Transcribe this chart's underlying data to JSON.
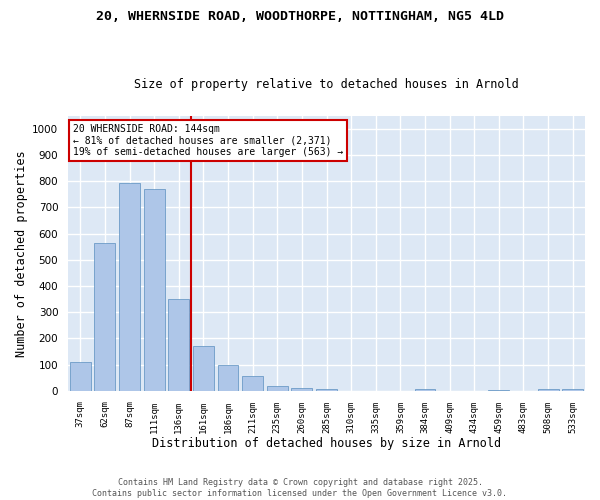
{
  "title1": "20, WHERNSIDE ROAD, WOODTHORPE, NOTTINGHAM, NG5 4LD",
  "title2": "Size of property relative to detached houses in Arnold",
  "xlabel": "Distribution of detached houses by size in Arnold",
  "ylabel": "Number of detached properties",
  "categories": [
    "37sqm",
    "62sqm",
    "87sqm",
    "111sqm",
    "136sqm",
    "161sqm",
    "186sqm",
    "211sqm",
    "235sqm",
    "260sqm",
    "285sqm",
    "310sqm",
    "335sqm",
    "359sqm",
    "384sqm",
    "409sqm",
    "434sqm",
    "459sqm",
    "483sqm",
    "508sqm",
    "533sqm"
  ],
  "values": [
    110,
    565,
    795,
    770,
    350,
    170,
    97,
    55,
    18,
    12,
    8,
    0,
    0,
    0,
    8,
    0,
    0,
    5,
    0,
    8,
    8
  ],
  "bar_color": "#aec6e8",
  "bar_edge_color": "#5a8fc0",
  "vline_x": 4.5,
  "vline_color": "#cc0000",
  "annotation_text": "20 WHERNSIDE ROAD: 144sqm\n← 81% of detached houses are smaller (2,371)\n19% of semi-detached houses are larger (563) →",
  "annotation_box_color": "#cc0000",
  "ylim": [
    0,
    1050
  ],
  "yticks": [
    0,
    100,
    200,
    300,
    400,
    500,
    600,
    700,
    800,
    900,
    1000
  ],
  "bg_color": "#dde8f5",
  "grid_color": "#ffffff",
  "footer1": "Contains HM Land Registry data © Crown copyright and database right 2025.",
  "footer2": "Contains public sector information licensed under the Open Government Licence v3.0."
}
